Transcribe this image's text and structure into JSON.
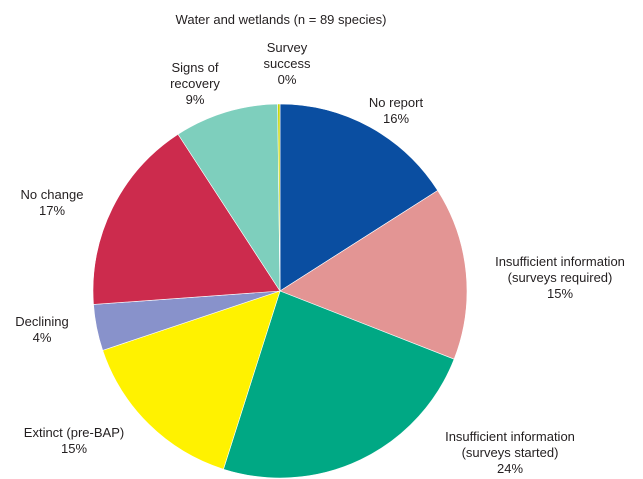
{
  "chart_data": {
    "type": "pie",
    "title": "Water and wetlands (n = 89 species)",
    "start": "12 o'clock",
    "direction": "clockwise",
    "slices": [
      {
        "lines": [
          "No report",
          "16%"
        ],
        "value": 16,
        "color": "#0a4ea1"
      },
      {
        "lines": [
          "Insufficient information",
          "(surveys required)",
          "15%"
        ],
        "value": 15,
        "color": "#e39594"
      },
      {
        "lines": [
          "Insufficient information",
          "(surveys started)",
          "24%"
        ],
        "value": 24,
        "color": "#00a884"
      },
      {
        "lines": [
          "Extinct (pre-BAP)",
          "15%"
        ],
        "value": 15,
        "color": "#fff200"
      },
      {
        "lines": [
          "Declining",
          "4%"
        ],
        "value": 4,
        "color": "#8892cb"
      },
      {
        "lines": [
          "No change",
          "17%"
        ],
        "value": 17,
        "color": "#cc2b4d"
      },
      {
        "lines": [
          "Signs of",
          "recovery",
          "9%"
        ],
        "value": 9,
        "color": "#7ecfbd"
      },
      {
        "lines": [
          "Survey",
          "success",
          "0%"
        ],
        "value": 0.2,
        "color": "#c8d400"
      }
    ]
  }
}
